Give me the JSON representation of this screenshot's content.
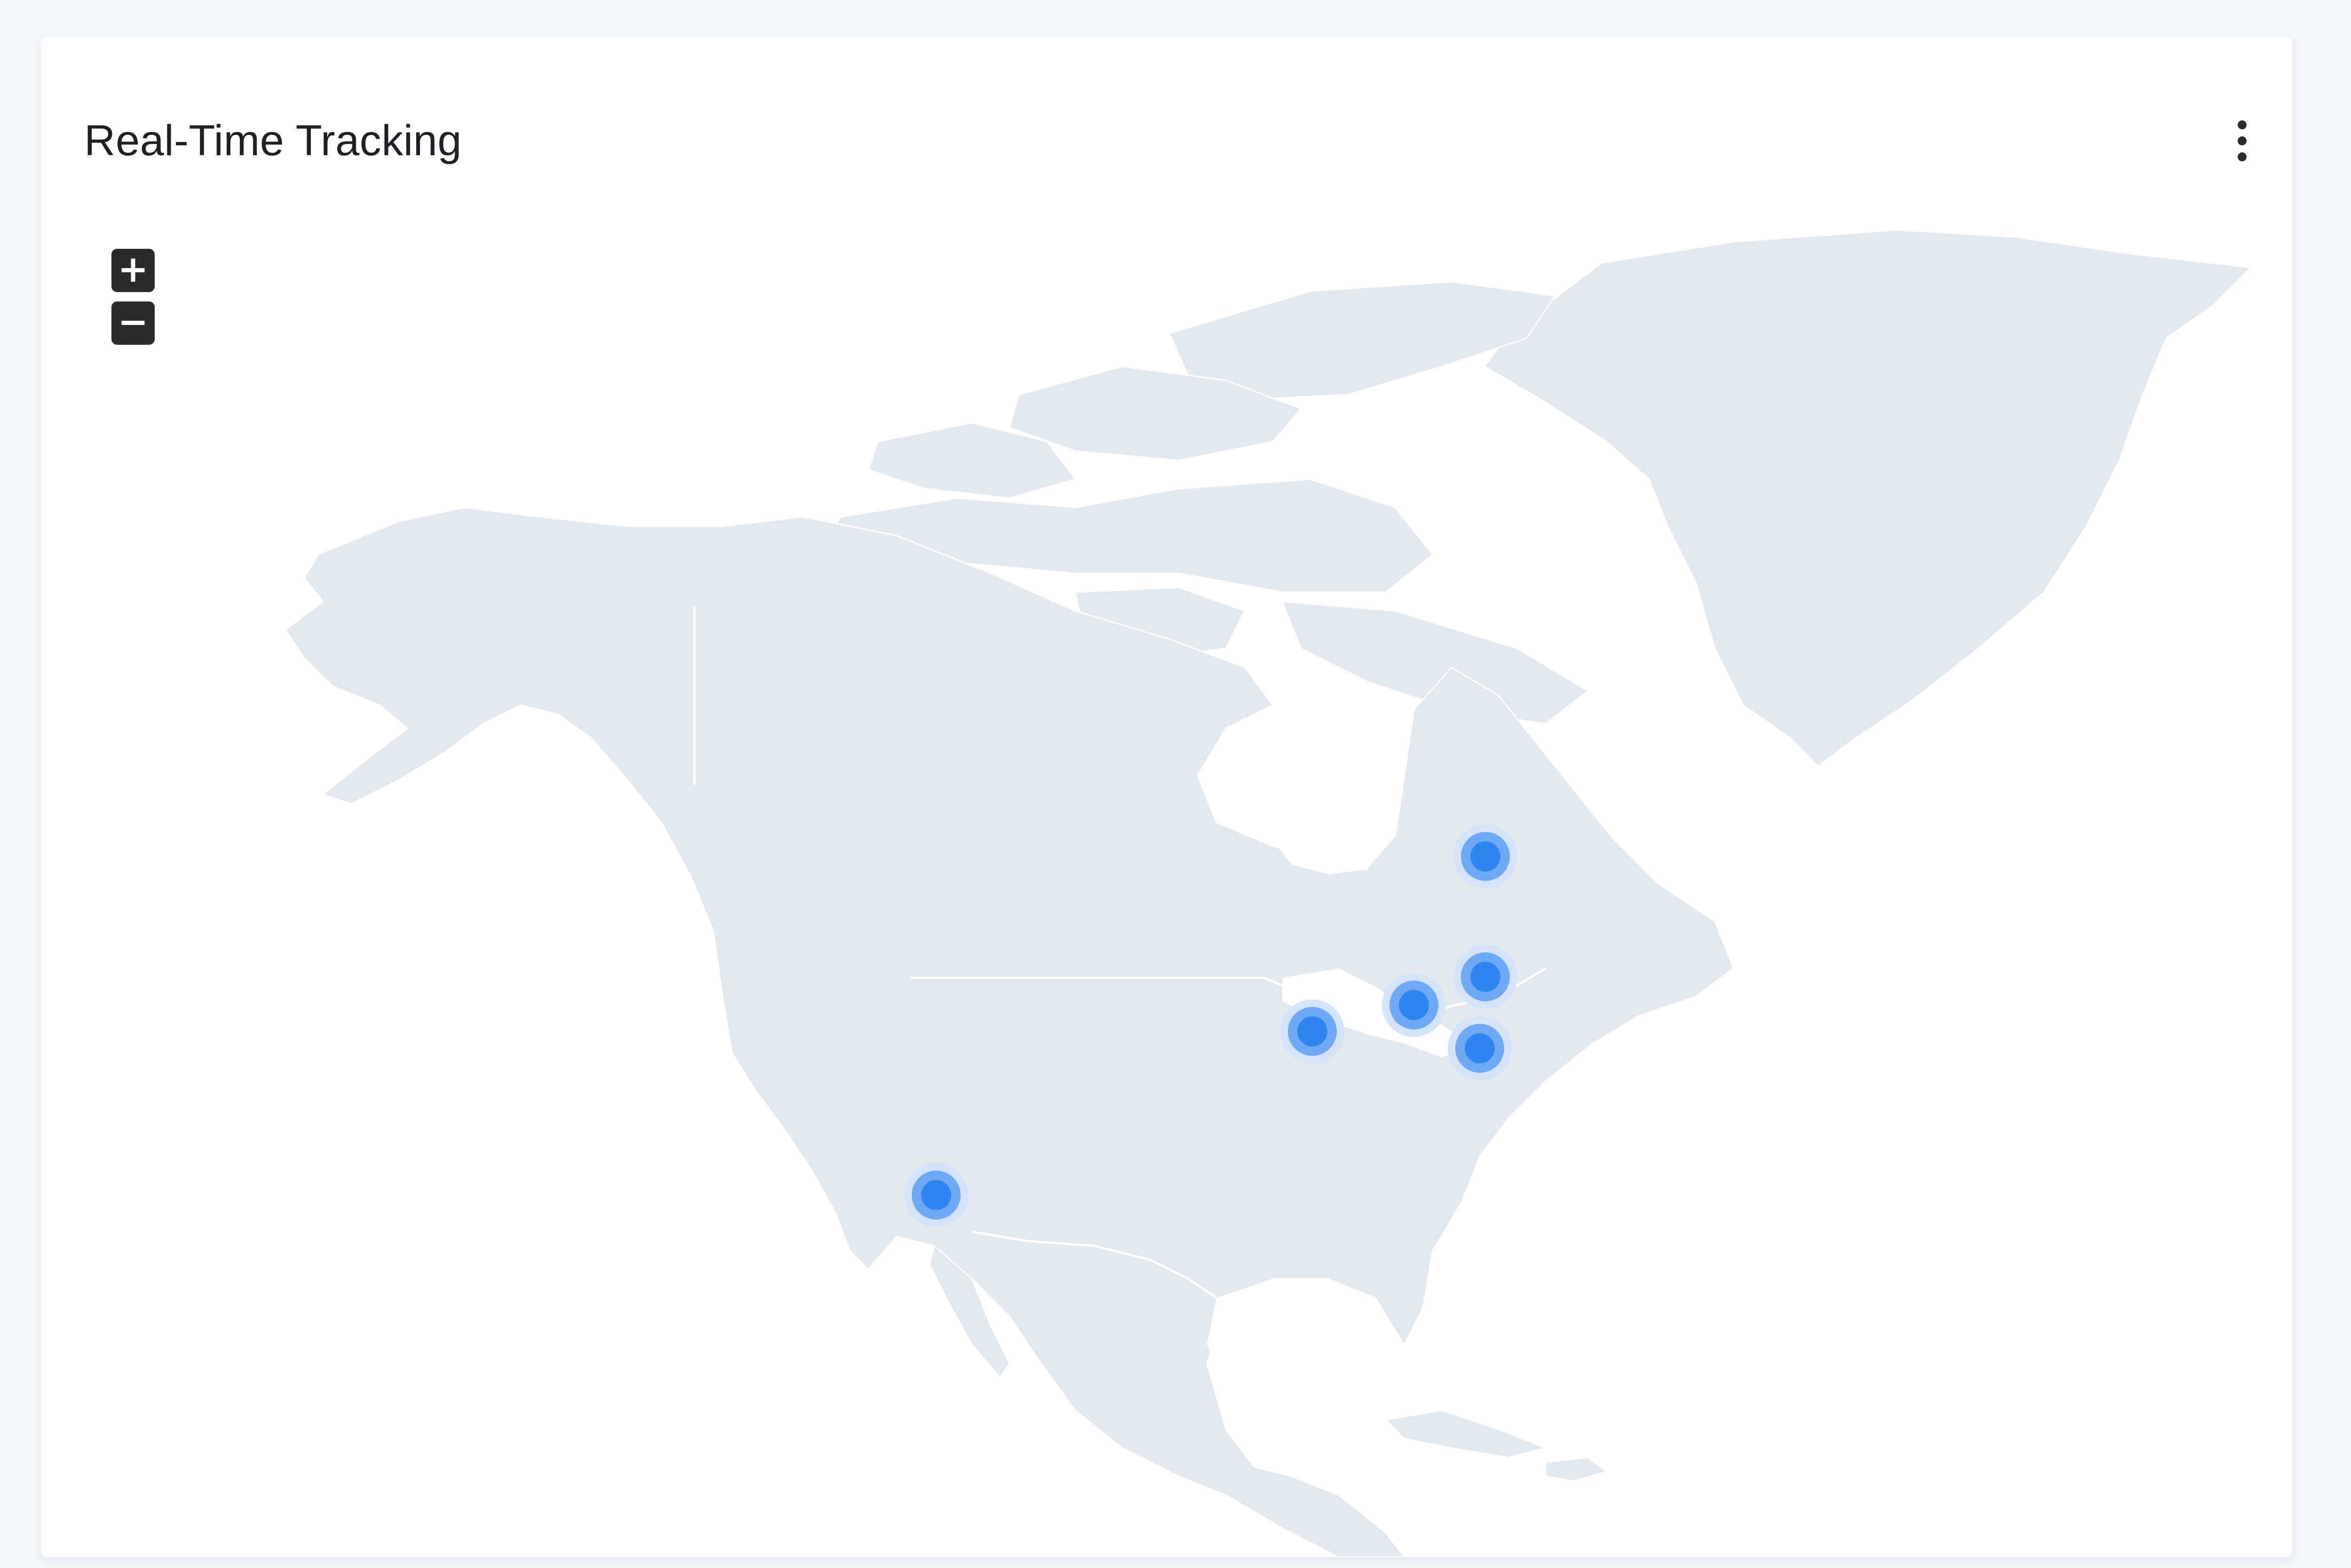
{
  "card": {
    "title": "Real-Time Tracking",
    "menu_icon": "more-vertical-icon"
  },
  "zoom": {
    "in_label": "+",
    "out_label": "−",
    "in_icon": "plus-icon",
    "out_icon": "minus-icon"
  },
  "map": {
    "region": "North America",
    "land_color": "#e3e8ee",
    "marker_color": "#2f86f0",
    "markers": [
      {
        "id": "marker-quebec"
      },
      {
        "id": "marker-montreal"
      },
      {
        "id": "marker-toronto"
      },
      {
        "id": "marker-new-york"
      },
      {
        "id": "marker-chicago"
      },
      {
        "id": "marker-los-angeles"
      }
    ]
  }
}
